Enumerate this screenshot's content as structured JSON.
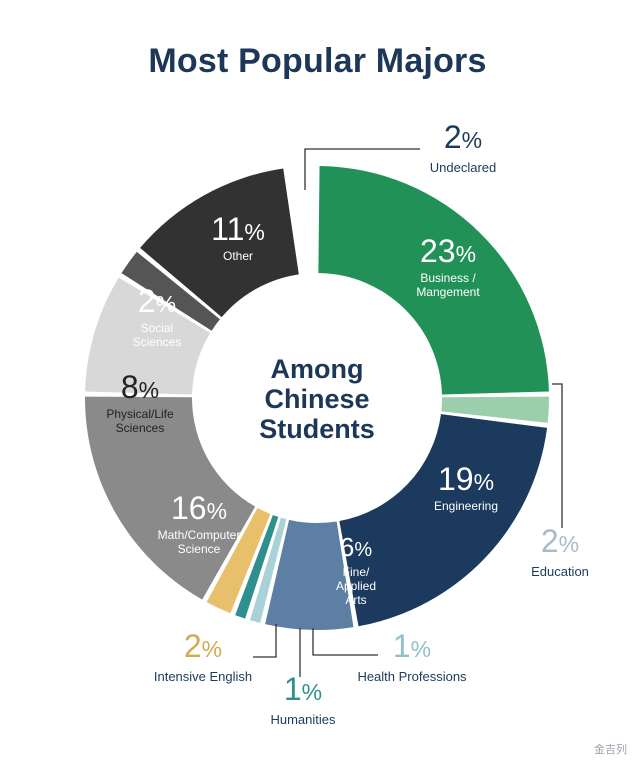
{
  "chart_data": {
    "type": "pie",
    "title": "Most Popular Majors",
    "center_label": [
      "Among",
      "Chinese",
      "Students"
    ],
    "unit": "%",
    "slices": [
      {
        "label": "Business / Mangement",
        "label_lines": [
          "Business /",
          "Mangement"
        ],
        "value": 23,
        "color": "#229157"
      },
      {
        "label": "Education",
        "label_lines": [
          "Education"
        ],
        "value": 2,
        "color": "#9ccdac"
      },
      {
        "label": "Engineering",
        "label_lines": [
          "Engineering"
        ],
        "value": 19,
        "color": "#1b3a5d"
      },
      {
        "label": "Fine/ Applied Arts",
        "label_lines": [
          "Fine/",
          "Applied",
          "Arts"
        ],
        "value": 6,
        "color": "#5d7fa3"
      },
      {
        "label": "Health Professions",
        "label_lines": [
          "Health Professions"
        ],
        "value": 1,
        "color": "#a8d2d8"
      },
      {
        "label": "Humanities",
        "label_lines": [
          "Humanities"
        ],
        "value": 1,
        "color": "#2f8f8f"
      },
      {
        "label": "Intensive English",
        "label_lines": [
          "Intensive English"
        ],
        "value": 2,
        "color": "#e8bf6a"
      },
      {
        "label": "Math/Computer Science",
        "label_lines": [
          "Math/Computer",
          "Science"
        ],
        "value": 16,
        "color": "#8a8a8a"
      },
      {
        "label": "Physical/Life Sciences",
        "label_lines": [
          "Physical/Life",
          "Sciences"
        ],
        "value": 8,
        "color": "#d8d8d8"
      },
      {
        "label": "Social Sciences",
        "label_lines": [
          "Social",
          "Sciences"
        ],
        "value": 2,
        "color": "#555555"
      },
      {
        "label": "Other",
        "label_lines": [
          "Other"
        ],
        "value": 11,
        "color": "#333233"
      },
      {
        "label": "Undeclared",
        "label_lines": [
          "Undeclared"
        ],
        "value": 2,
        "color": "#ffffff"
      }
    ]
  },
  "watermark": "金吉列"
}
